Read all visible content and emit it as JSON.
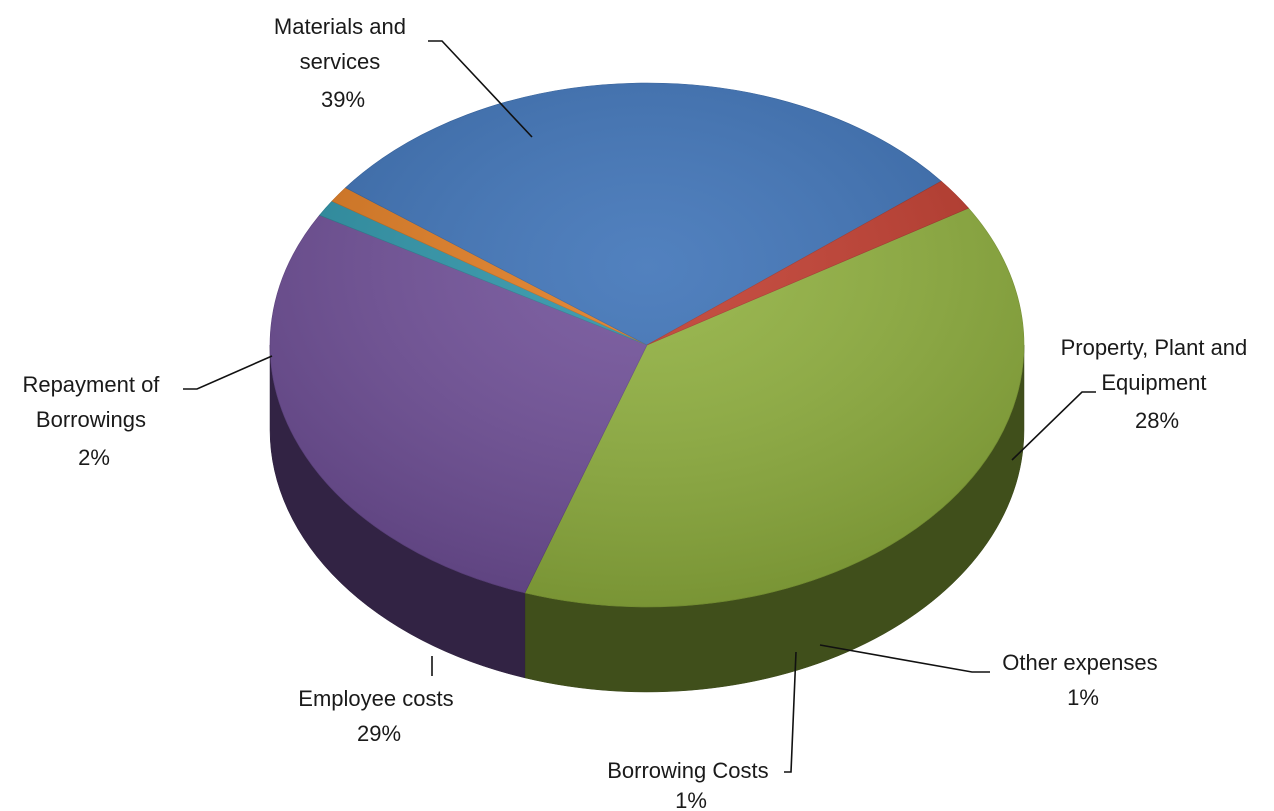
{
  "chart_data": {
    "type": "pie",
    "style": "3d",
    "legend": "none",
    "slices": [
      {
        "label": "Materials and services",
        "value": 39,
        "display": "39%",
        "color": "#8fb03c"
      },
      {
        "label": "Property, Plant and Equipment",
        "value": 28,
        "display": "28%",
        "color": "#6f4e98"
      },
      {
        "label": "Other expenses",
        "value": 1,
        "display": "1%",
        "color": "#2a93a8"
      },
      {
        "label": "Borrowing Costs",
        "value": 1,
        "display": "1%",
        "color": "#e07a1e"
      },
      {
        "label": "Employee costs",
        "value": 29,
        "display": "29%",
        "color": "#3a70b6"
      },
      {
        "label": "Repayment of Borrowings",
        "value": 2,
        "display": "2%",
        "color": "#c0392b"
      }
    ]
  }
}
